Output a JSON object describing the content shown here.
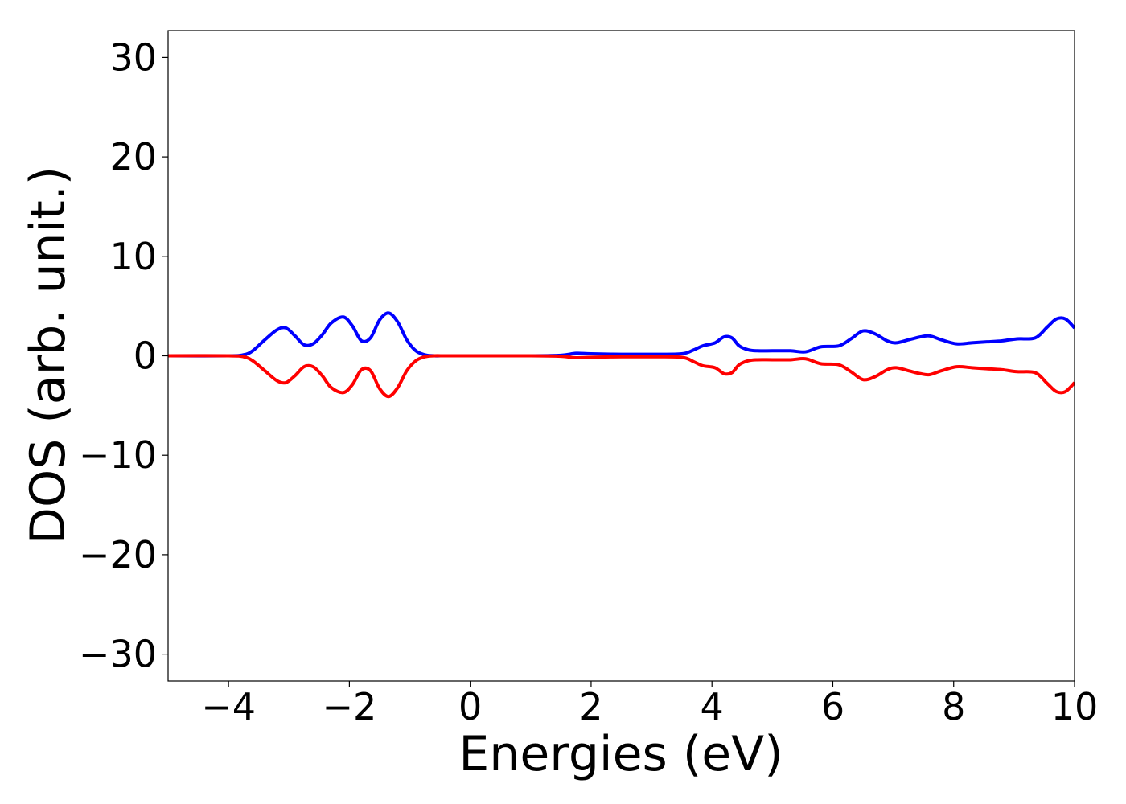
{
  "chart_data": {
    "type": "line",
    "title": "",
    "xlabel": "Energies (eV)",
    "ylabel": "DOS (arb. unit.)",
    "xlim": [
      -5,
      10
    ],
    "ylim": [
      -32.7,
      32.7
    ],
    "x_ticks": [
      -4,
      -2,
      0,
      2,
      4,
      6,
      8,
      10
    ],
    "y_ticks": [
      -30,
      -20,
      -10,
      0,
      10,
      20,
      30
    ],
    "x_tick_labels": [
      "−4",
      "−2",
      "0",
      "2",
      "4",
      "6",
      "8",
      "10"
    ],
    "y_tick_labels": [
      "−30",
      "−20",
      "−10",
      "0",
      "10",
      "20",
      "30"
    ],
    "grid": false,
    "legend": "none",
    "x": [
      -5.0,
      -4.0,
      -3.75,
      -3.6,
      -3.4,
      -3.2,
      -3.05,
      -2.9,
      -2.75,
      -2.6,
      -2.45,
      -2.3,
      -2.1,
      -1.95,
      -1.8,
      -1.65,
      -1.5,
      -1.35,
      -1.2,
      -1.05,
      -0.9,
      -0.75,
      -0.6,
      -0.4,
      0.0,
      1.0,
      1.5,
      1.75,
      2.0,
      2.5,
      3.0,
      3.5,
      3.7,
      3.85,
      4.05,
      4.2,
      4.33,
      4.45,
      4.6,
      4.75,
      5.0,
      5.3,
      5.55,
      5.8,
      6.1,
      6.3,
      6.5,
      6.7,
      6.9,
      7.05,
      7.25,
      7.45,
      7.6,
      7.8,
      8.05,
      8.3,
      8.55,
      8.8,
      9.05,
      9.35,
      9.55,
      9.7,
      9.85,
      10.0
    ],
    "series": [
      {
        "color": "#0000ff",
        "values": [
          0.0,
          0.0,
          0.1,
          0.5,
          1.6,
          2.6,
          2.8,
          2.0,
          1.1,
          1.2,
          2.1,
          3.3,
          3.9,
          3.0,
          1.5,
          1.8,
          3.6,
          4.3,
          3.4,
          1.6,
          0.5,
          0.1,
          0.0,
          0.0,
          0.0,
          0.0,
          0.05,
          0.25,
          0.2,
          0.15,
          0.15,
          0.2,
          0.6,
          1.0,
          1.3,
          1.9,
          1.8,
          1.0,
          0.6,
          0.5,
          0.5,
          0.5,
          0.4,
          0.9,
          1.0,
          1.7,
          2.5,
          2.2,
          1.5,
          1.3,
          1.6,
          1.9,
          2.0,
          1.6,
          1.2,
          1.3,
          1.4,
          1.5,
          1.7,
          1.8,
          2.9,
          3.7,
          3.7,
          2.8
        ]
      },
      {
        "color": "#ff0000",
        "values": [
          0.0,
          0.0,
          -0.1,
          -0.5,
          -1.5,
          -2.5,
          -2.7,
          -2.0,
          -1.1,
          -1.1,
          -2.0,
          -3.2,
          -3.7,
          -2.9,
          -1.4,
          -1.5,
          -3.3,
          -4.1,
          -3.2,
          -1.5,
          -0.5,
          -0.1,
          0.0,
          0.0,
          0.0,
          0.0,
          -0.05,
          -0.2,
          -0.15,
          -0.1,
          -0.1,
          -0.15,
          -0.6,
          -1.0,
          -1.2,
          -1.8,
          -1.7,
          -0.9,
          -0.5,
          -0.4,
          -0.4,
          -0.4,
          -0.3,
          -0.8,
          -0.9,
          -1.6,
          -2.4,
          -2.1,
          -1.4,
          -1.2,
          -1.5,
          -1.8,
          -1.9,
          -1.5,
          -1.1,
          -1.2,
          -1.3,
          -1.4,
          -1.6,
          -1.7,
          -2.8,
          -3.6,
          -3.6,
          -2.7
        ]
      }
    ]
  }
}
